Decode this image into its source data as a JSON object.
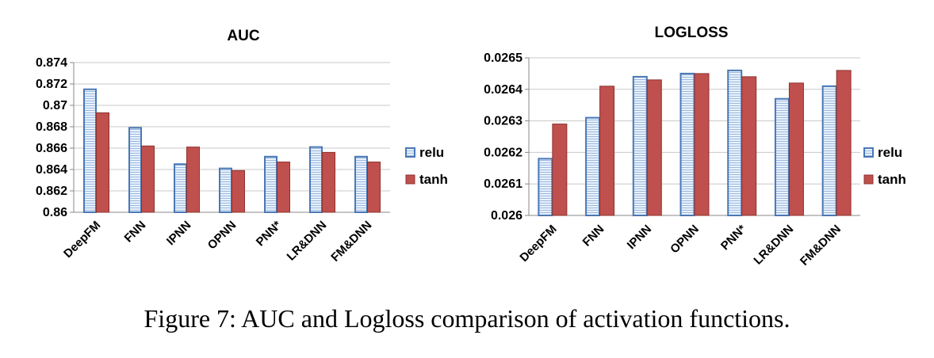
{
  "caption": "Figure 7: AUC and Logloss comparison of activation functions.",
  "colors": {
    "relu_stroke": "#4a78b5",
    "relu_fill": "#cfe0f4",
    "tanh_fill": "#c0504d",
    "tanh_stroke": "#8c3330",
    "grid": "#c8c8c8"
  },
  "chart_data": [
    {
      "type": "bar",
      "title": "AUC",
      "categories": [
        "DeepFM",
        "FNN",
        "IPNN",
        "OPNN",
        "PNN*",
        "LR&DNN",
        "FM&DNN"
      ],
      "series": [
        {
          "name": "relu",
          "values": [
            0.8715,
            0.8679,
            0.8645,
            0.8641,
            0.8652,
            0.8661,
            0.8652
          ]
        },
        {
          "name": "tanh",
          "values": [
            0.8693,
            0.8662,
            0.8661,
            0.8639,
            0.8647,
            0.8656,
            0.8647
          ]
        }
      ],
      "ylim": [
        0.86,
        0.874
      ],
      "yticks": [
        "0.86",
        "0.862",
        "0.864",
        "0.866",
        "0.868",
        "0.87",
        "0.872",
        "0.874"
      ],
      "grid": true,
      "legend": "right"
    },
    {
      "type": "bar",
      "title": "LOGLOSS",
      "categories": [
        "DeepFM",
        "FNN",
        "IPNN",
        "OPNN",
        "PNN*",
        "LR&DNN",
        "FM&DNN"
      ],
      "series": [
        {
          "name": "relu",
          "values": [
            0.02618,
            0.02631,
            0.02644,
            0.02645,
            0.02646,
            0.02637,
            0.02641
          ]
        },
        {
          "name": "tanh",
          "values": [
            0.02629,
            0.02641,
            0.02643,
            0.02645,
            0.02644,
            0.02642,
            0.02646
          ]
        }
      ],
      "ylim": [
        0.026,
        0.0265
      ],
      "yticks": [
        "0.026",
        "0.0261",
        "0.0262",
        "0.0263",
        "0.0264",
        "0.0265"
      ],
      "grid": true,
      "legend": "right"
    }
  ]
}
